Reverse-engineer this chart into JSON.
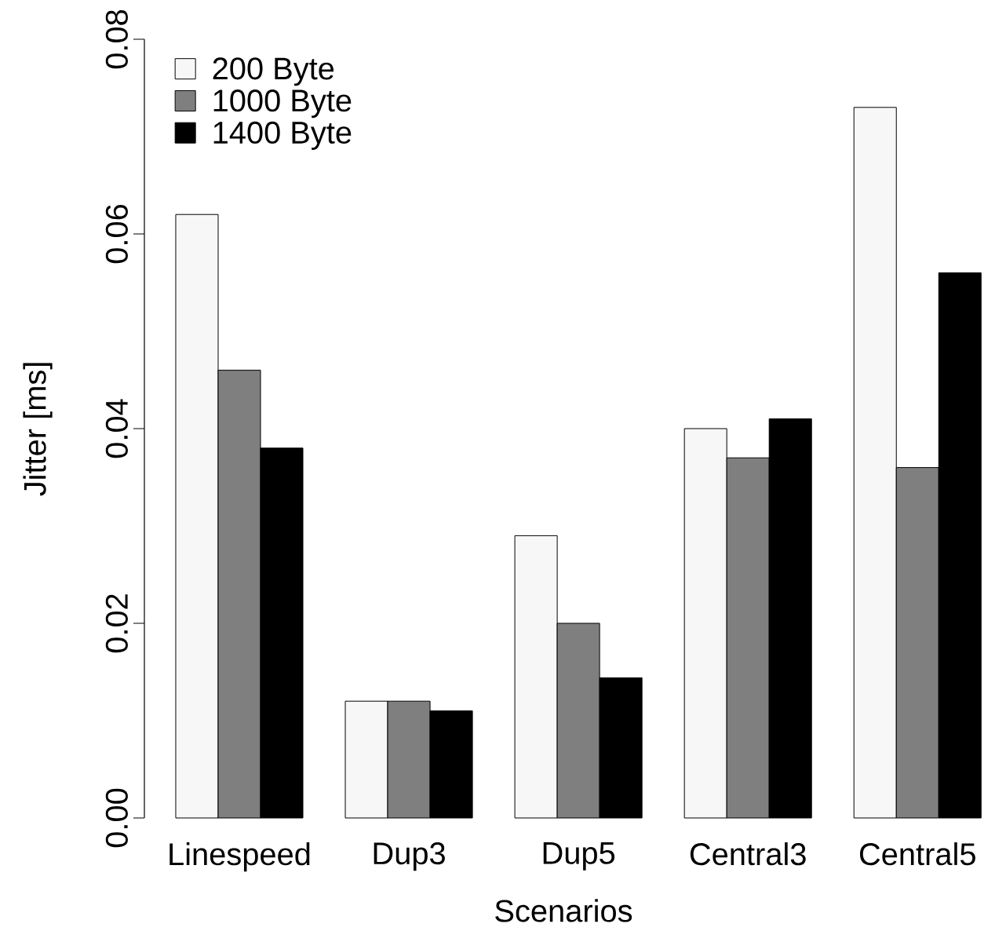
{
  "chart_data": {
    "type": "bar",
    "xlabel": "Scenarios",
    "ylabel": "Jitter [ms]",
    "categories": [
      "Linespeed",
      "Dup3",
      "Dup5",
      "Central3",
      "Central5"
    ],
    "series": [
      {
        "name": "200 Byte",
        "color": "#f7f7f7",
        "values": [
          0.062,
          0.012,
          0.029,
          0.04,
          0.073
        ]
      },
      {
        "name": "1000 Byte",
        "color": "#7f7f7f",
        "values": [
          0.046,
          0.012,
          0.02,
          0.037,
          0.036
        ]
      },
      {
        "name": "1400 Byte",
        "color": "#000000",
        "values": [
          0.038,
          0.011,
          0.0144,
          0.041,
          0.056
        ]
      }
    ],
    "ylim": [
      0,
      0.08
    ],
    "yticks": [
      {
        "value": 0,
        "label": "0.00"
      },
      0.02,
      0.04,
      0.06,
      0.08
    ],
    "legend": "top left",
    "grid": false
  }
}
